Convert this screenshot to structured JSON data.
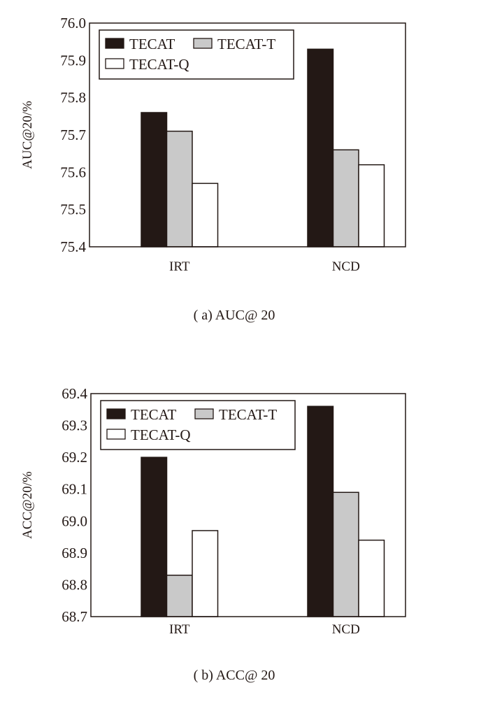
{
  "chart_data": [
    {
      "type": "bar",
      "caption": "( a) AUC@ 20",
      "ylabel": "AUC@20/%",
      "xlabel": "",
      "categories": [
        "IRT",
        "NCD"
      ],
      "ylim": [
        75.4,
        76.0
      ],
      "yticks": [
        "75.4",
        "75.5",
        "75.6",
        "75.7",
        "75.8",
        "75.9",
        "76.0"
      ],
      "legend_position": "top-left",
      "series": [
        {
          "name": "TECAT",
          "values": [
            75.76,
            75.93
          ],
          "color": "#231815"
        },
        {
          "name": "TECAT-T",
          "values": [
            75.71,
            75.66
          ],
          "color": "#c9c9c9"
        },
        {
          "name": "TECAT-Q",
          "values": [
            75.57,
            75.62
          ],
          "color": "#ffffff"
        }
      ]
    },
    {
      "type": "bar",
      "caption": "( b) ACC@ 20",
      "ylabel": "ACC@20/%",
      "xlabel": "",
      "categories": [
        "IRT",
        "NCD"
      ],
      "ylim": [
        68.7,
        69.4
      ],
      "yticks": [
        "68.7",
        "68.8",
        "68.9",
        "69.0",
        "69.1",
        "69.2",
        "69.3",
        "69.4"
      ],
      "legend_position": "top-left",
      "series": [
        {
          "name": "TECAT",
          "values": [
            69.2,
            69.36
          ],
          "color": "#231815"
        },
        {
          "name": "TECAT-T",
          "values": [
            68.83,
            69.09
          ],
          "color": "#c9c9c9"
        },
        {
          "name": "TECAT-Q",
          "values": [
            68.97,
            68.94
          ],
          "color": "#ffffff"
        }
      ]
    }
  ]
}
